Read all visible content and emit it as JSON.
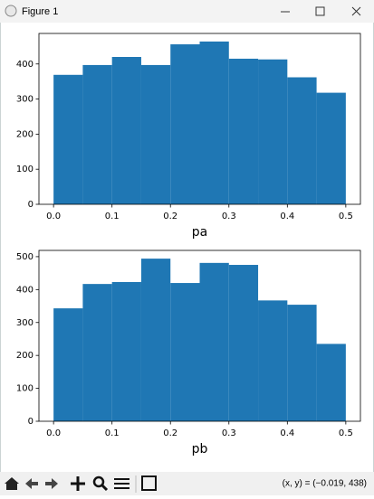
{
  "window": {
    "title": "Figure 1"
  },
  "status": "(x, y) = (−0.019, 438)",
  "chart_data": [
    {
      "type": "histogram",
      "xlabel": "pa",
      "color": "#1f77b4",
      "bins": [
        0,
        0.05,
        0.1,
        0.15,
        0.2,
        0.25,
        0.3,
        0.35,
        0.4,
        0.45,
        0.5
      ],
      "values": [
        369,
        397,
        420,
        397,
        456,
        464,
        415,
        413,
        362,
        318
      ],
      "xlim": [
        -0.025,
        0.525
      ],
      "ylim": [
        0,
        487
      ],
      "xticks": [
        {
          "value": 0,
          "label": "0.0"
        },
        0.1,
        0.2,
        0.3,
        0.4,
        0.5
      ],
      "yticks": [
        0,
        100,
        200,
        300,
        400
      ]
    },
    {
      "type": "histogram",
      "xlabel": "pb",
      "color": "#1f77b4",
      "bins": [
        0,
        0.05,
        0.1,
        0.15,
        0.2,
        0.25,
        0.3,
        0.35,
        0.4,
        0.45,
        0.5
      ],
      "values": [
        343,
        417,
        423,
        494,
        420,
        481,
        475,
        367,
        354,
        235
      ],
      "xlim": [
        -0.025,
        0.525
      ],
      "ylim": [
        0,
        519
      ],
      "xticks": [
        {
          "value": 0,
          "label": "0.0"
        },
        0.1,
        0.2,
        0.3,
        0.4,
        0.5
      ],
      "yticks": [
        0,
        100,
        200,
        300,
        400,
        500
      ]
    }
  ]
}
